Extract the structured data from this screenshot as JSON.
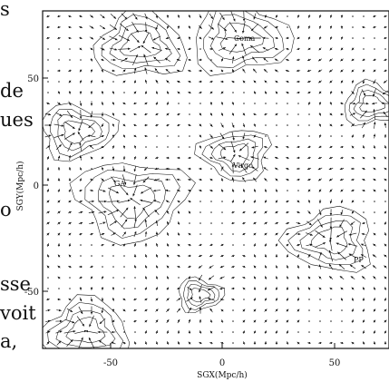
{
  "page_fragments": [
    {
      "id": "s",
      "text": "s"
    },
    {
      "id": "de",
      "text": "de"
    },
    {
      "id": "ues",
      "text": "ues"
    },
    {
      "id": "o",
      "text": "o"
    },
    {
      "id": "sse",
      "text": "sse"
    },
    {
      "id": "voit",
      "text": "voit"
    },
    {
      "id": "a",
      "text": "a,"
    }
  ],
  "figure": {
    "xlabel": "SGX(Mpc/h)",
    "ylabel": "SGY(Mpc/h)",
    "x_ticks": [
      "-50",
      "0",
      "50"
    ],
    "y_ticks": [
      "50",
      "0",
      "-50"
    ],
    "region_labels": [
      "Coma",
      "Virgo",
      "GA",
      "PP"
    ],
    "xlim": [
      -85,
      85
    ],
    "ylim": [
      -85,
      85
    ],
    "grid": false
  },
  "colors": {
    "ink": "#111111",
    "background": "#ffffff"
  }
}
